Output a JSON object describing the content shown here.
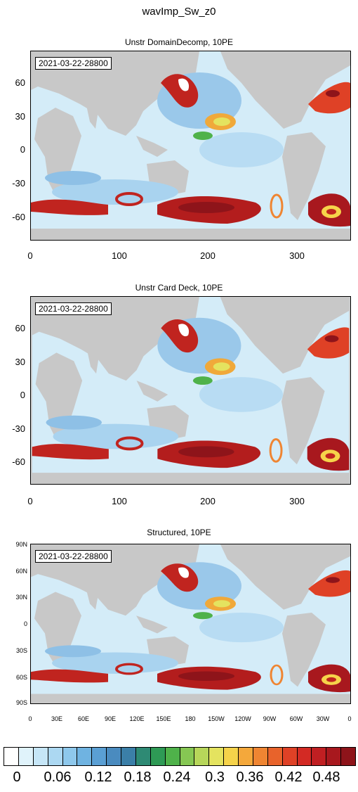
{
  "main_title": "wavImp_Sw_z0",
  "timestamp": "2021-03-22-28800",
  "panels": [
    {
      "title": "Unstr DomainDecomp, 10PE",
      "yticks": [
        "60",
        "30",
        "0",
        "-30",
        "-60"
      ],
      "xticks": [
        "0",
        "100",
        "200",
        "300"
      ]
    },
    {
      "title": "Unstr Card Deck, 10PE",
      "yticks": [
        "60",
        "30",
        "0",
        "-30",
        "-60"
      ],
      "xticks": [
        "0",
        "100",
        "200",
        "300"
      ]
    },
    {
      "title": "Structured, 10PE",
      "yticks": [
        "90N",
        "60N",
        "30N",
        "0",
        "30S",
        "60S",
        "90S"
      ],
      "xticks": [
        "0",
        "30E",
        "60E",
        "90E",
        "120E",
        "150E",
        "180",
        "150W",
        "120W",
        "90W",
        "60W",
        "30W",
        "0"
      ]
    }
  ],
  "colorbar": {
    "colors": [
      "#ffffff",
      "#e0f3fb",
      "#c6e6f7",
      "#acd8f2",
      "#8ec8ec",
      "#6fb3e1",
      "#5a9fd4",
      "#4a8bbf",
      "#3b7fa8",
      "#2e8a74",
      "#2e9a55",
      "#4fb24a",
      "#86c753",
      "#b7d65a",
      "#e4e35f",
      "#f6d34a",
      "#f4a83b",
      "#ef8532",
      "#e8632b",
      "#df4126",
      "#d32a24",
      "#c01f22",
      "#a8181e",
      "#8e141a"
    ],
    "labels": [
      "0",
      "0.06",
      "0.12",
      "0.18",
      "0.24",
      "0.3",
      "0.36",
      "0.42",
      "0.48"
    ]
  }
}
